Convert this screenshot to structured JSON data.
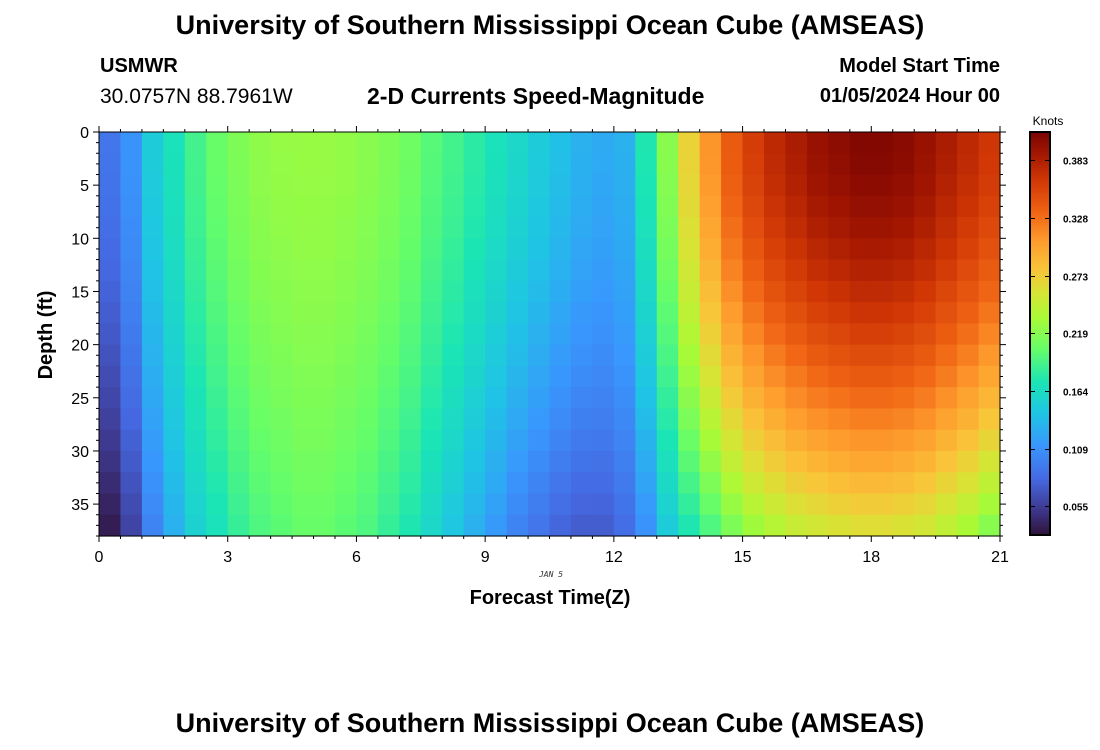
{
  "header": {
    "title": "University of Southern Mississippi Ocean Cube (AMSEAS)",
    "station": "USMWR",
    "coordinates": "30.0757N  88.7961W",
    "subtitle": "2-D Currents Speed-Magnitude",
    "start_label": "Model Start Time",
    "start_value": "01/05/2024 Hour 00"
  },
  "footer": {
    "title": "University of Southern Mississippi Ocean Cube (AMSEAS)"
  },
  "chart_data": {
    "type": "heatmap",
    "title": "2-D Currents Speed-Magnitude",
    "xlabel": "Forecast Time(Z)",
    "ylabel": "Depth (ft)",
    "date_label": "JAN 5",
    "xlim": [
      0,
      21
    ],
    "ylim": [
      0,
      38
    ],
    "y_inverted": true,
    "x_ticks": [
      0,
      3,
      6,
      9,
      12,
      15,
      18,
      21
    ],
    "y_ticks": [
      0,
      5,
      10,
      15,
      20,
      25,
      30,
      35
    ],
    "colorbar": {
      "label": "Knots",
      "min": 0.028,
      "max": 0.41,
      "ticks": [
        "0.055",
        "0.109",
        "0.164",
        "0.219",
        "0.273",
        "0.328",
        "0.383"
      ]
    },
    "x": [
      0.25,
      0.75,
      1.25,
      1.75,
      2.25,
      2.75,
      3.25,
      3.75,
      4.25,
      4.75,
      5.25,
      5.75,
      6.25,
      6.75,
      7.25,
      7.75,
      8.25,
      8.75,
      9.25,
      9.75,
      10.25,
      10.75,
      11.25,
      11.75,
      12.25,
      12.75,
      13.25,
      13.75,
      14.25,
      14.75,
      15.25,
      15.75,
      16.25,
      16.75,
      17.25,
      17.75,
      18.25,
      18.75,
      19.25,
      19.75,
      20.25,
      20.75
    ],
    "depths": [
      1,
      3,
      5,
      7,
      9,
      11,
      13,
      15,
      17,
      19,
      21,
      23,
      25,
      27,
      29,
      31,
      33,
      35,
      37
    ],
    "surface_speed": [
      0.09,
      0.11,
      0.15,
      0.17,
      0.19,
      0.205,
      0.215,
      0.222,
      0.225,
      0.226,
      0.226,
      0.224,
      0.22,
      0.215,
      0.208,
      0.198,
      0.19,
      0.18,
      0.17,
      0.16,
      0.15,
      0.14,
      0.13,
      0.125,
      0.13,
      0.175,
      0.22,
      0.27,
      0.31,
      0.34,
      0.36,
      0.375,
      0.385,
      0.395,
      0.4,
      0.405,
      0.405,
      0.402,
      0.395,
      0.385,
      0.375,
      0.365
    ],
    "bottom_speed": [
      0.035,
      0.06,
      0.1,
      0.13,
      0.155,
      0.17,
      0.185,
      0.195,
      0.2,
      0.205,
      0.205,
      0.2,
      0.195,
      0.185,
      0.175,
      0.16,
      0.145,
      0.13,
      0.115,
      0.1,
      0.09,
      0.08,
      0.075,
      0.075,
      0.085,
      0.11,
      0.15,
      0.175,
      0.195,
      0.215,
      0.23,
      0.24,
      0.25,
      0.255,
      0.26,
      0.263,
      0.263,
      0.26,
      0.255,
      0.245,
      0.235,
      0.22
    ]
  }
}
